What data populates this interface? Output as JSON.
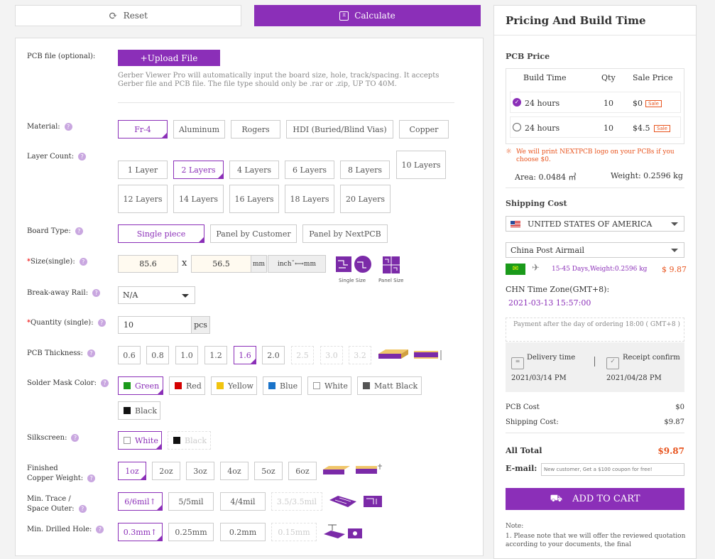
{
  "topbar": {
    "reset_label": "Reset",
    "calculate_label": "Calculate"
  },
  "pcb_file": {
    "label": "PCB file (optional):",
    "upload_label": "+Upload File",
    "note": "Gerber Viewer Pro will automatically input the board size, hole, track/spacing. It accepts Gerber file and PCB file. The file type should only be .rar or .zip, UP TO 40M."
  },
  "material": {
    "label": "Material:",
    "options": [
      "Fr-4",
      "Aluminum",
      "Rogers",
      "HDI (Buried/Blind Vias)",
      "Copper"
    ]
  },
  "layers": {
    "label": "Layer Count:",
    "options": [
      "1 Layer",
      "2 Layers",
      "4 Layers",
      "6 Layers",
      "8 Layers",
      "10 Layers",
      "12 Layers",
      "14 Layers",
      "16 Layers",
      "18 Layers",
      "20 Layers"
    ]
  },
  "board_type": {
    "label": "Board Type:",
    "options": [
      "Single piece",
      "Panel by Customer",
      "Panel by NextPCB"
    ]
  },
  "size": {
    "label": "Size(single):",
    "width": "85.6",
    "x": "x",
    "height": "56.5",
    "unit": "mm",
    "toggle": "inchˇ⟷mm",
    "single_caption": "Single Size",
    "panel_caption": "Panel Size"
  },
  "breakaway": {
    "label": "Break-away Rail:",
    "value": "N/A"
  },
  "quantity": {
    "label": "Quantity (single):",
    "value": "10",
    "unit": "pcs"
  },
  "thickness": {
    "label": "PCB Thickness:",
    "options": [
      "0.6",
      "0.8",
      "1.0",
      "1.2",
      "1.6",
      "2.0",
      "2.5",
      "3.0",
      "3.2"
    ]
  },
  "mask": {
    "label": "Solder Mask Color:",
    "options": [
      {
        "name": "Green",
        "color": "#1a9a1a"
      },
      {
        "name": "Red",
        "color": "#d40000"
      },
      {
        "name": "Yellow",
        "color": "#f1c40f"
      },
      {
        "name": "Blue",
        "color": "#1a73c9"
      },
      {
        "name": "White",
        "color": "#ffffff"
      },
      {
        "name": "Matt Black",
        "color": "#555555"
      },
      {
        "name": "Black",
        "color": "#111111"
      }
    ]
  },
  "silkscreen": {
    "label": "Silkscreen:",
    "options": [
      {
        "name": "White",
        "color": "#ffffff"
      },
      {
        "name": "Black",
        "color": "#111111"
      }
    ]
  },
  "copper": {
    "label1": "Finished",
    "label2": "Copper Weight:",
    "options": [
      "1oz",
      "2oz",
      "3oz",
      "4oz",
      "5oz",
      "6oz"
    ]
  },
  "trace": {
    "label1": "Min. Trace /",
    "label2": "Space Outer:",
    "options": [
      "6/6mil↑",
      "5/5mil",
      "4/4mil",
      "3.5/3.5mil"
    ]
  },
  "drill": {
    "label": "Min. Drilled Hole:",
    "options": [
      "0.3mm↑",
      "0.25mm",
      "0.2mm",
      "0.15mm"
    ]
  },
  "pricing": {
    "title": "Pricing And Build Time",
    "pcb_price": "PCB Price",
    "headers": [
      "Build Time",
      "Qty",
      "Sale Price"
    ],
    "rows": [
      {
        "time": "24 hours",
        "qty": "10",
        "price": "$0",
        "badge": "Sale"
      },
      {
        "time": "24 hours",
        "qty": "10",
        "price": "$4.5",
        "badge": "Sale"
      }
    ],
    "logo_note": "We will print NEXTPCB logo on your PCBs if you choose $0.",
    "area": "Area: 0.0484 ㎡",
    "weight": "Weight: 0.2596 kg",
    "shipping_title": "Shipping Cost",
    "country": "UNITED STATES OF AMERICA",
    "method": "China Post Airmail",
    "ship_days": "15-45 Days,Weight:0.2596 kg",
    "ship_price": "$ 9.87",
    "timezone": "CHN Time Zone(GMT+8):",
    "datetime": "2021-03-13 15:57:00",
    "payment_note": "Payment after the day of ordering 18:00 ( GMT+8 )",
    "delivery_label": "Delivery time",
    "delivery_date": "2021/03/14 PM",
    "receipt_label": "Receipt confirm",
    "receipt_date": "2021/04/28 PM",
    "pcb_cost_label": "PCB Cost",
    "pcb_cost": "$0",
    "ship_cost_label": "Shipping Cost:",
    "ship_cost": "$9.87",
    "total_label": "All Total",
    "total": "$9.87",
    "email_label": "E-mail:",
    "email_placeholder": "New customer, Get a $100 coupon for free!",
    "cart_label": "ADD TO CART",
    "note_title": "Note:",
    "note_text": "1. Please note that we will offer the reviewed quotation according to your documents, the final"
  },
  "colors": {
    "accent": "#8b2fb8",
    "price": "#e8541e"
  }
}
